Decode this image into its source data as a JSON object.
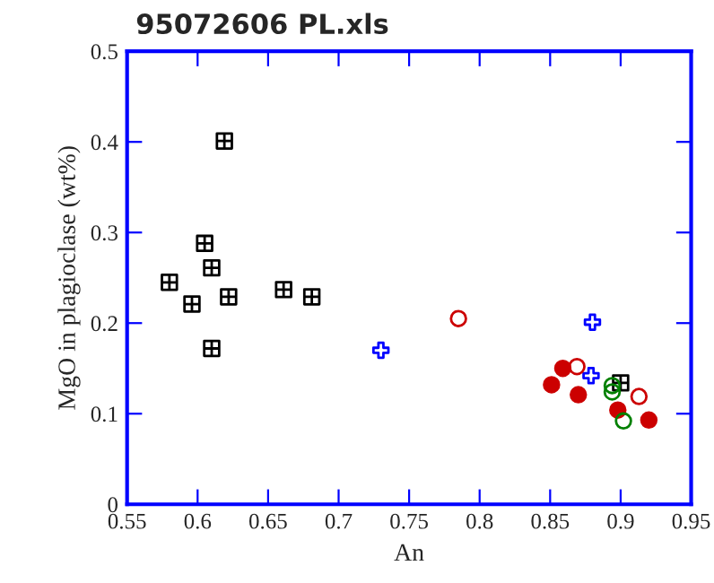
{
  "chart_data": {
    "type": "scatter",
    "title": "95072606 PL.xls",
    "xlabel": "An",
    "ylabel": "MgO in plagioclase (wt%)",
    "xlim": [
      0.55,
      0.95
    ],
    "xticks": [
      0.55,
      0.6,
      0.65,
      0.7,
      0.75,
      0.8,
      0.85,
      0.9,
      0.95
    ],
    "ylim": [
      0,
      0.5
    ],
    "yticks": [
      0,
      0.1,
      0.2,
      0.3,
      0.4,
      0.5
    ],
    "grid": false,
    "legend": false,
    "series": [
      {
        "color": "#000000",
        "marker": "square",
        "x": [
          0.58,
          0.605,
          0.61,
          0.596,
          0.622,
          0.61,
          0.619,
          0.661,
          0.681,
          0.9
        ],
        "values": [
          0.245,
          0.288,
          0.261,
          0.221,
          0.229,
          0.172,
          0.401,
          0.237,
          0.229,
          0.134
        ]
      },
      {
        "color": "#0000ff",
        "marker": "cross",
        "x": [
          0.73,
          0.88,
          0.879
        ],
        "values": [
          0.17,
          0.201,
          0.142
        ]
      },
      {
        "color": "#cc0000",
        "marker": "circle",
        "x": [
          0.785,
          0.869,
          0.913
        ],
        "values": [
          0.205,
          0.152,
          0.119
        ]
      },
      {
        "color": "#cc0000",
        "marker": "filled circle",
        "x": [
          0.859,
          0.851,
          0.87,
          0.898,
          0.92
        ],
        "values": [
          0.15,
          0.132,
          0.121,
          0.104,
          0.093
        ]
      },
      {
        "color": "#008000",
        "marker": "circle",
        "x": [
          0.894,
          0.894,
          0.902
        ],
        "values": [
          0.131,
          0.124,
          0.092
        ]
      }
    ]
  }
}
